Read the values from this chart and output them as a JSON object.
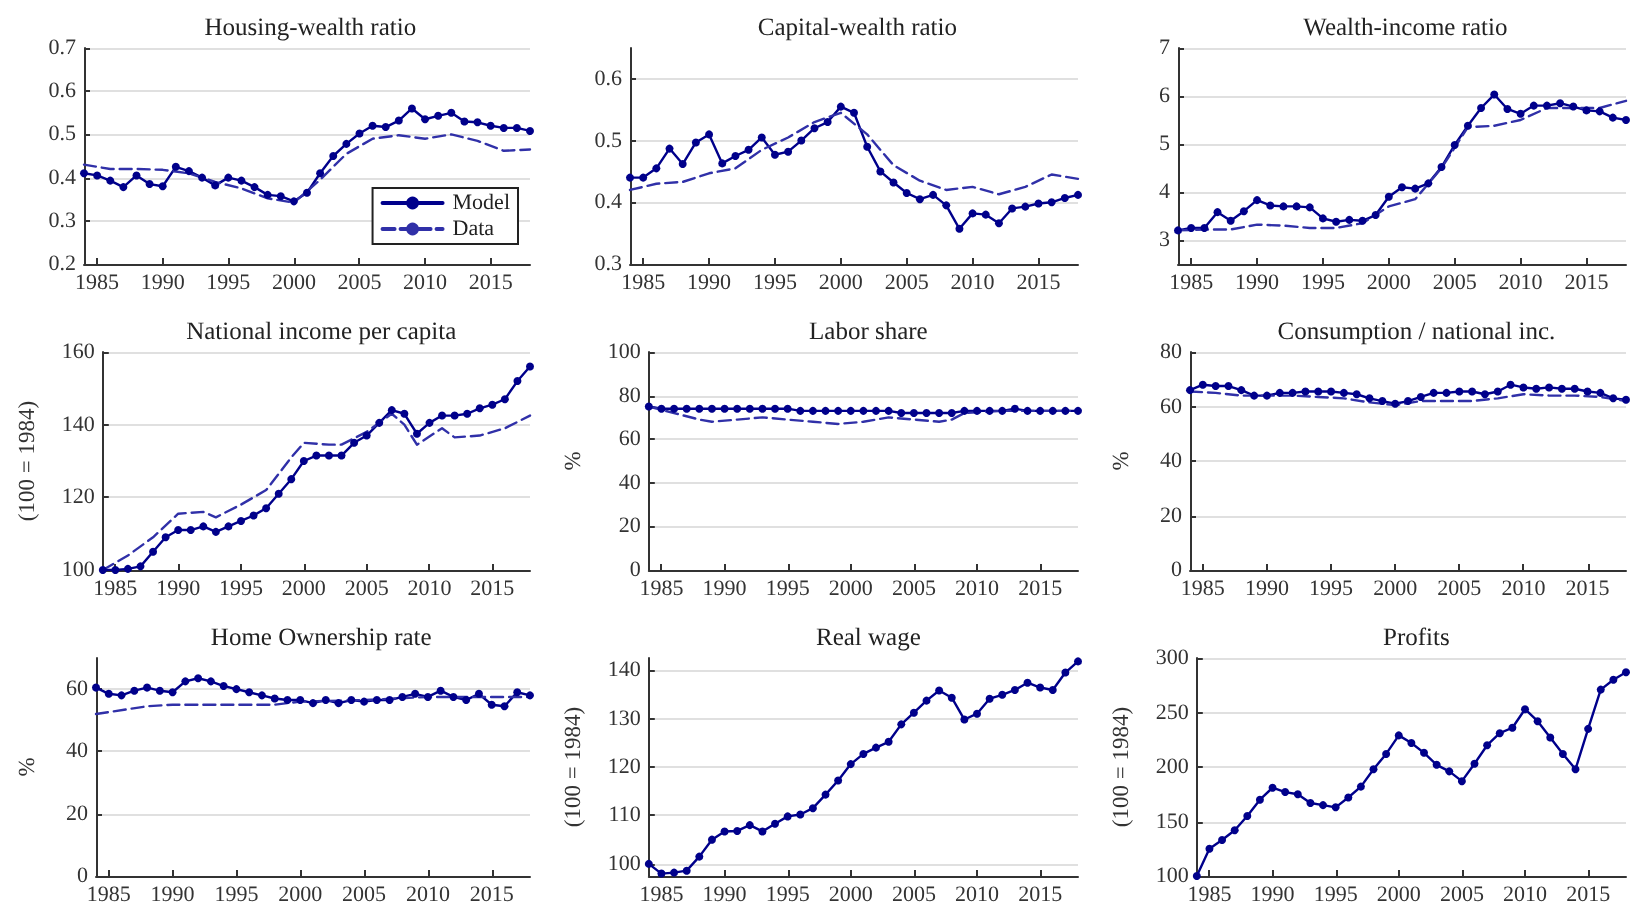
{
  "chart_data": [
    {
      "type": "line",
      "title": "Housing-wealth ratio",
      "x": [
        1984,
        1985,
        1986,
        1987,
        1988,
        1989,
        1990,
        1991,
        1992,
        1993,
        1994,
        1995,
        1996,
        1997,
        1998,
        1999,
        2000,
        2001,
        2002,
        2003,
        2004,
        2005,
        2006,
        2007,
        2008,
        2009,
        2010,
        2011,
        2012,
        2013,
        2014,
        2015,
        2016,
        2017,
        2018
      ],
      "xlim": [
        1984,
        2018
      ],
      "xticks": [
        1985,
        1990,
        1995,
        2000,
        2005,
        2010,
        2015
      ],
      "ylim": [
        0.2,
        0.7
      ],
      "yticks": [
        0.2,
        0.3,
        0.4,
        0.5,
        0.6,
        0.7
      ],
      "grid": "y",
      "legend": "bottom right",
      "series": [
        {
          "name": "Model",
          "color": "#00008b",
          "marker": "circle",
          "values": [
            0.41,
            0.405,
            0.393,
            0.378,
            0.405,
            0.385,
            0.38,
            0.425,
            0.415,
            0.4,
            0.382,
            0.4,
            0.393,
            0.378,
            0.36,
            0.357,
            0.345,
            0.365,
            0.41,
            0.45,
            0.478,
            0.502,
            0.52,
            0.517,
            0.532,
            0.56,
            0.535,
            0.543,
            0.55,
            0.53,
            0.528,
            0.52,
            0.515,
            0.515,
            0.508
          ]
        },
        {
          "name": "Data",
          "color": "#3030a8",
          "marker": "none",
          "line_style": "dashed",
          "x": [
            1984,
            1986,
            1988,
            1990,
            1992,
            1994,
            1996,
            1998,
            2000,
            2002,
            2004,
            2006,
            2008,
            2010,
            2012,
            2014,
            2016,
            2018
          ],
          "values": [
            0.43,
            0.42,
            0.42,
            0.418,
            0.41,
            0.39,
            0.375,
            0.352,
            0.342,
            0.395,
            0.455,
            0.49,
            0.498,
            0.49,
            0.5,
            0.485,
            0.462,
            0.465
          ]
        }
      ]
    },
    {
      "type": "line",
      "title": "Capital-wealth ratio",
      "x": [
        1984,
        1985,
        1986,
        1987,
        1988,
        1989,
        1990,
        1991,
        1992,
        1993,
        1994,
        1995,
        1996,
        1997,
        1998,
        1999,
        2000,
        2001,
        2002,
        2003,
        2004,
        2005,
        2006,
        2007,
        2008,
        2009,
        2010,
        2011,
        2012,
        2013,
        2014,
        2015,
        2016,
        2017,
        2018
      ],
      "xlim": [
        1984,
        2018
      ],
      "xticks": [
        1985,
        1990,
        1995,
        2000,
        2005,
        2010,
        2015
      ],
      "ylim": [
        0.3,
        0.65
      ],
      "yticks": [
        0.3,
        0.4,
        0.5,
        0.6
      ],
      "grid": "y",
      "series": [
        {
          "color": "#00008b",
          "marker": "circle",
          "values": [
            0.44,
            0.44,
            0.455,
            0.487,
            0.462,
            0.497,
            0.51,
            0.463,
            0.475,
            0.485,
            0.505,
            0.477,
            0.482,
            0.5,
            0.52,
            0.53,
            0.555,
            0.545,
            0.49,
            0.45,
            0.432,
            0.415,
            0.405,
            0.412,
            0.395,
            0.357,
            0.382,
            0.38,
            0.366,
            0.39,
            0.393,
            0.398,
            0.4,
            0.407,
            0.412
          ]
        },
        {
          "color": "#3030a8",
          "marker": "none",
          "line_style": "dashed",
          "x": [
            1984,
            1986,
            1988,
            1990,
            1992,
            1994,
            1996,
            1998,
            2000,
            2002,
            2004,
            2006,
            2008,
            2010,
            2012,
            2014,
            2016,
            2018
          ],
          "values": [
            0.42,
            0.43,
            0.433,
            0.447,
            0.455,
            0.485,
            0.505,
            0.53,
            0.545,
            0.51,
            0.46,
            0.435,
            0.42,
            0.425,
            0.413,
            0.425,
            0.445,
            0.438
          ]
        }
      ]
    },
    {
      "type": "line",
      "title": "Wealth-income ratio",
      "x": [
        1984,
        1985,
        1986,
        1987,
        1988,
        1989,
        1990,
        1991,
        1992,
        1993,
        1994,
        1995,
        1996,
        1997,
        1998,
        1999,
        2000,
        2001,
        2002,
        2003,
        2004,
        2005,
        2006,
        2007,
        2008,
        2009,
        2010,
        2011,
        2012,
        2013,
        2014,
        2015,
        2016,
        2017,
        2018
      ],
      "xlim": [
        1984,
        2018
      ],
      "xticks": [
        1985,
        1990,
        1995,
        2000,
        2005,
        2010,
        2015
      ],
      "ylim": [
        2.5,
        7
      ],
      "yticks": [
        3,
        4,
        5,
        6,
        7
      ],
      "grid": "y",
      "series": [
        {
          "color": "#00008b",
          "marker": "circle",
          "values": [
            3.2,
            3.25,
            3.25,
            3.58,
            3.4,
            3.6,
            3.83,
            3.72,
            3.7,
            3.7,
            3.68,
            3.45,
            3.38,
            3.42,
            3.4,
            3.52,
            3.9,
            4.1,
            4.07,
            4.18,
            4.52,
            4.98,
            5.38,
            5.75,
            6.03,
            5.73,
            5.63,
            5.8,
            5.8,
            5.85,
            5.78,
            5.7,
            5.68,
            5.55,
            5.5
          ]
        },
        {
          "color": "#3030a8",
          "marker": "none",
          "line_style": "dashed",
          "x": [
            1984,
            1986,
            1988,
            1990,
            1992,
            1994,
            1996,
            1998,
            2000,
            2002,
            2004,
            2006,
            2008,
            2010,
            2012,
            2014,
            2016,
            2018
          ],
          "values": [
            3.2,
            3.22,
            3.22,
            3.32,
            3.3,
            3.25,
            3.25,
            3.35,
            3.7,
            3.85,
            4.5,
            5.35,
            5.38,
            5.5,
            5.75,
            5.75,
            5.75,
            5.9
          ]
        }
      ]
    },
    {
      "type": "line",
      "title": "National income per capita",
      "ylabel": "(100 = 1984)",
      "x": [
        1984,
        1985,
        1986,
        1987,
        1988,
        1989,
        1990,
        1991,
        1992,
        1993,
        1994,
        1995,
        1996,
        1997,
        1998,
        1999,
        2000,
        2001,
        2002,
        2003,
        2004,
        2005,
        2006,
        2007,
        2008,
        2009,
        2010,
        2011,
        2012,
        2013,
        2014,
        2015,
        2016,
        2017,
        2018
      ],
      "xlim": [
        1984,
        2018
      ],
      "xticks": [
        1985,
        1990,
        1995,
        2000,
        2005,
        2010,
        2015
      ],
      "ylim": [
        100,
        160
      ],
      "yticks": [
        100,
        120,
        140,
        160
      ],
      "grid": "y",
      "series": [
        {
          "color": "#00008b",
          "marker": "circle",
          "values": [
            100,
            100,
            100.3,
            101,
            105,
            109,
            111,
            111,
            112,
            110.5,
            112,
            113.5,
            115,
            117,
            121,
            125,
            130,
            131.5,
            131.5,
            131.5,
            135,
            137,
            140.5,
            144,
            143,
            137.5,
            140.5,
            142.5,
            142.5,
            143,
            144.5,
            145.5,
            147,
            152,
            156
          ]
        },
        {
          "color": "#3030a8",
          "marker": "none",
          "line_style": "dashed",
          "x": [
            1984,
            1986,
            1988,
            1990,
            1992,
            1993,
            1995,
            1997,
            1999,
            2000,
            2002,
            2003,
            2005,
            2007,
            2008,
            2009,
            2011,
            2012,
            2014,
            2016,
            2018
          ],
          "values": [
            100,
            104,
            109,
            115.5,
            116,
            114.5,
            118,
            122,
            131,
            135,
            134.5,
            134.5,
            138,
            143,
            140,
            134.5,
            139,
            136.5,
            137,
            139,
            142.5
          ]
        }
      ]
    },
    {
      "type": "line",
      "title": "Labor share",
      "ylabel": "%",
      "x": [
        1984,
        1985,
        1986,
        1987,
        1988,
        1989,
        1990,
        1991,
        1992,
        1993,
        1994,
        1995,
        1996,
        1997,
        1998,
        1999,
        2000,
        2001,
        2002,
        2003,
        2004,
        2005,
        2006,
        2007,
        2008,
        2009,
        2010,
        2011,
        2012,
        2013,
        2014,
        2015,
        2016,
        2017,
        2018
      ],
      "xlim": [
        1984,
        2018
      ],
      "xticks": [
        1985,
        1990,
        1995,
        2000,
        2005,
        2010,
        2015
      ],
      "ylim": [
        0,
        100
      ],
      "yticks": [
        0,
        20,
        40,
        60,
        80,
        100
      ],
      "grid": "y",
      "series": [
        {
          "color": "#00008b",
          "marker": "circle",
          "values": [
            75,
            74,
            74,
            74,
            74,
            74,
            74,
            74,
            74,
            74,
            74,
            74,
            73,
            73,
            73,
            73,
            73,
            73,
            73,
            73,
            72,
            72,
            72,
            72,
            72,
            73,
            73,
            73,
            73,
            74,
            73,
            73,
            73,
            73,
            73
          ]
        },
        {
          "color": "#3030a8",
          "marker": "none",
          "line_style": "dashed",
          "x": [
            1984,
            1986,
            1988,
            1989,
            1991,
            1993,
            1995,
            1997,
            1999,
            2001,
            2003,
            2005,
            2007,
            2008,
            2009,
            2012,
            2018
          ],
          "values": [
            75,
            72,
            69,
            68,
            69,
            70,
            69,
            68,
            67,
            68,
            70,
            69,
            68,
            69,
            72,
            73,
            73
          ]
        }
      ]
    },
    {
      "type": "line",
      "title": "Consumption / national inc.",
      "ylabel": "%",
      "x": [
        1984,
        1985,
        1986,
        1987,
        1988,
        1989,
        1990,
        1991,
        1992,
        1993,
        1994,
        1995,
        1996,
        1997,
        1998,
        1999,
        2000,
        2001,
        2002,
        2003,
        2004,
        2005,
        2006,
        2007,
        2008,
        2009,
        2010,
        2011,
        2012,
        2013,
        2014,
        2015,
        2016,
        2017,
        2018
      ],
      "xlim": [
        1984,
        2018
      ],
      "xticks": [
        1985,
        1990,
        1995,
        2000,
        2005,
        2010,
        2015
      ],
      "ylim": [
        0,
        80
      ],
      "yticks": [
        0,
        20,
        40,
        60,
        80
      ],
      "grid": "y",
      "series": [
        {
          "color": "#00008b",
          "marker": "circle",
          "values": [
            66,
            68,
            67.5,
            67.5,
            66,
            64,
            64,
            65,
            65,
            65.5,
            65.5,
            65.5,
            65,
            64.5,
            63,
            62,
            61,
            62,
            63.5,
            65,
            65,
            65.5,
            65.5,
            64.5,
            65.5,
            68,
            67,
            66.5,
            67,
            66.5,
            66.5,
            65.5,
            65,
            63,
            62.5
          ]
        },
        {
          "color": "#3030a8",
          "marker": "none",
          "line_style": "dashed",
          "x": [
            1984,
            1986,
            1988,
            1990,
            1992,
            1994,
            1996,
            1998,
            2000,
            2002,
            2004,
            2006,
            2008,
            2010,
            2012,
            2014,
            2016,
            2018
          ],
          "values": [
            65.5,
            65,
            64,
            64,
            64,
            63.5,
            63,
            61.5,
            60.5,
            62,
            62,
            62,
            63,
            64.5,
            64,
            64,
            63.5,
            62
          ]
        }
      ]
    },
    {
      "type": "line",
      "title": "Home Ownership rate",
      "ylabel": "%",
      "x": [
        1984,
        1985,
        1986,
        1987,
        1988,
        1989,
        1990,
        1991,
        1992,
        1993,
        1994,
        1995,
        1996,
        1997,
        1998,
        1999,
        2000,
        2001,
        2002,
        2003,
        2004,
        2005,
        2006,
        2007,
        2008,
        2009,
        2010,
        2011,
        2012,
        2013,
        2014,
        2015,
        2016,
        2017,
        2018
      ],
      "xlim": [
        1984,
        2018
      ],
      "xticks": [
        1985,
        1990,
        1995,
        2000,
        2005,
        2010,
        2015
      ],
      "ylim": [
        0,
        70
      ],
      "yticks": [
        0,
        20,
        40,
        60
      ],
      "grid": "y",
      "series": [
        {
          "color": "#00008b",
          "marker": "circle",
          "values": [
            60.5,
            58.5,
            58,
            59.5,
            60.5,
            59.5,
            59,
            62.5,
            63.5,
            62.5,
            61,
            60,
            59,
            58,
            57,
            56.5,
            56.5,
            55.5,
            56.5,
            55.5,
            56.5,
            56,
            56.5,
            56.5,
            57.5,
            58.5,
            57.5,
            59.5,
            57.5,
            56.5,
            58.5,
            55,
            54.5,
            59,
            58
          ]
        },
        {
          "color": "#3030a8",
          "marker": "none",
          "line_style": "dashed",
          "x": [
            1984,
            1988,
            1990,
            1995,
            1998,
            2000,
            2005,
            2010,
            2015,
            2018
          ],
          "values": [
            52,
            54.5,
            55,
            55,
            55,
            56,
            56.5,
            57.5,
            57.5,
            57.5
          ]
        }
      ]
    },
    {
      "type": "line",
      "title": "Real wage",
      "ylabel": "(100 = 1984)",
      "x": [
        1984,
        1985,
        1986,
        1987,
        1988,
        1989,
        1990,
        1991,
        1992,
        1993,
        1994,
        1995,
        1996,
        1997,
        1998,
        1999,
        2000,
        2001,
        2002,
        2003,
        2004,
        2005,
        2006,
        2007,
        2008,
        2009,
        2010,
        2011,
        2012,
        2013,
        2014,
        2015,
        2016,
        2017,
        2018
      ],
      "xlim": [
        1984,
        2018
      ],
      "xticks": [
        1985,
        1990,
        1995,
        2000,
        2005,
        2010,
        2015
      ],
      "ylim": [
        97.5,
        142.5
      ],
      "yticks": [
        100,
        110,
        120,
        130,
        140
      ],
      "grid": "y",
      "series": [
        {
          "color": "#00008b",
          "marker": "circle",
          "values": [
            100,
            98,
            98.2,
            98.6,
            101.5,
            105,
            106.7,
            106.8,
            108,
            106.7,
            108.3,
            109.8,
            110.2,
            111.5,
            114.3,
            117.2,
            120.6,
            122.7,
            124,
            125.2,
            128.8,
            131.2,
            133.7,
            135.8,
            134.3,
            129.8,
            131,
            134.1,
            134.9,
            135.9,
            137.4,
            136.4,
            135.9,
            139.5,
            141.8
          ]
        }
      ]
    },
    {
      "type": "line",
      "title": "Profits",
      "ylabel": "(100 = 1984)",
      "x": [
        1984,
        1985,
        1986,
        1987,
        1988,
        1989,
        1990,
        1991,
        1992,
        1993,
        1994,
        1995,
        1996,
        1997,
        1998,
        1999,
        2000,
        2001,
        2002,
        2003,
        2004,
        2005,
        2006,
        2007,
        2008,
        2009,
        2010,
        2011,
        2012,
        2013,
        2014,
        2015,
        2016,
        2017,
        2018
      ],
      "xlim": [
        1984,
        2018
      ],
      "xticks": [
        1985,
        1990,
        1995,
        2000,
        2005,
        2010,
        2015
      ],
      "ylim": [
        100,
        300
      ],
      "yticks": [
        100,
        150,
        200,
        250,
        300
      ],
      "grid": "y",
      "series": [
        {
          "color": "#00008b",
          "marker": "circle",
          "values": [
            100,
            125,
            133,
            142,
            155,
            170,
            181,
            177,
            175,
            167,
            165,
            163,
            172,
            182,
            198,
            212,
            229,
            222,
            213,
            202,
            196,
            187,
            203,
            220,
            231,
            236,
            253,
            242,
            227,
            212,
            198,
            235,
            271,
            280,
            287
          ]
        }
      ]
    }
  ]
}
